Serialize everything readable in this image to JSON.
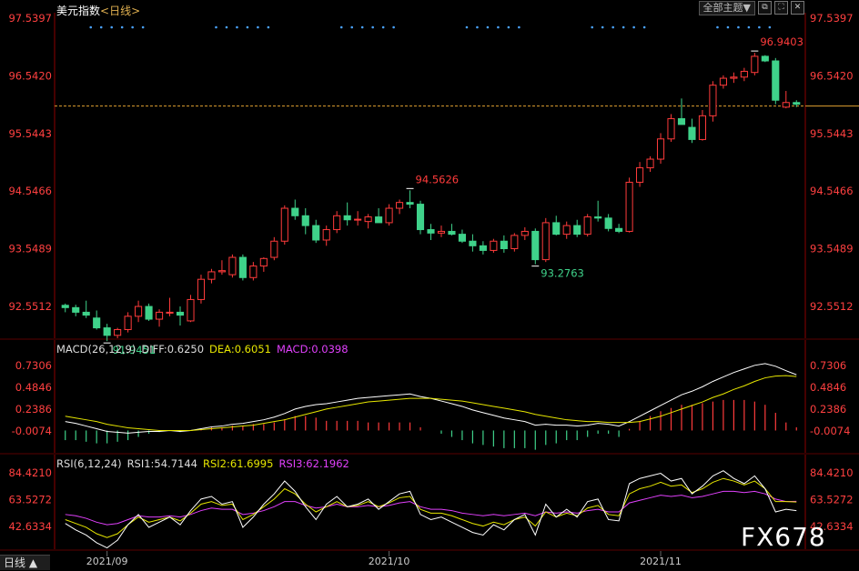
{
  "header": {
    "symbol": "美元指数",
    "period_bracketed": "<日线>",
    "dropdown_label": "全部主题▼"
  },
  "macd": {
    "label": "MACD(26,12,9)",
    "diff": "DIFF:0.6250",
    "dea": "DEA:0.6051",
    "macd": "MACD:0.0398"
  },
  "rsi": {
    "label": "RSI(6,12,24)",
    "rsi1": "RSI1:54.7144",
    "rsi2": "RSI2:61.6995",
    "rsi3": "RSI3:62.1962"
  },
  "bottom_tab": "日线 ▲",
  "watermark": "FX678",
  "colors": {
    "up": "#ff3b3b",
    "down": "#3fd28a",
    "diff": "#ffffff",
    "dea": "#e6e600",
    "rsi3": "#e040fb",
    "axis": "#8b0000"
  },
  "chart_data": [
    {
      "type": "candlestick",
      "ytick_labels": [
        "97.5397",
        "96.5420",
        "95.5443",
        "94.5466",
        "93.5489",
        "92.5512"
      ],
      "ylim": [
        92.0,
        97.5397
      ],
      "current_price_line": 96.02,
      "xtick_labels": [
        "2021/09",
        "2021/10",
        "2021/11"
      ],
      "annotations": [
        {
          "label": "91.9451",
          "index": 4,
          "kind": "low"
        },
        {
          "label": "94.5626",
          "index": 33,
          "kind": "high"
        },
        {
          "label": "93.2763",
          "index": 45,
          "kind": "low"
        },
        {
          "label": "96.9403",
          "index": 66,
          "kind": "high"
        }
      ],
      "candles": [
        [
          92.57,
          92.6,
          92.45,
          92.53
        ],
        [
          92.53,
          92.58,
          92.38,
          92.45
        ],
        [
          92.45,
          92.65,
          92.35,
          92.4
        ],
        [
          92.35,
          92.48,
          92.15,
          92.18
        ],
        [
          92.18,
          92.25,
          91.95,
          92.05
        ],
        [
          92.05,
          92.18,
          92.0,
          92.15
        ],
        [
          92.15,
          92.45,
          92.1,
          92.38
        ],
        [
          92.38,
          92.65,
          92.28,
          92.55
        ],
        [
          92.55,
          92.6,
          92.3,
          92.33
        ],
        [
          92.33,
          92.5,
          92.2,
          92.45
        ],
        [
          92.45,
          92.7,
          92.38,
          92.45
        ],
        [
          92.45,
          92.55,
          92.22,
          92.4
        ],
        [
          92.3,
          92.75,
          92.28,
          92.67
        ],
        [
          92.67,
          93.1,
          92.6,
          93.02
        ],
        [
          93.02,
          93.2,
          92.95,
          93.15
        ],
        [
          93.15,
          93.35,
          93.1,
          93.17
        ],
        [
          93.1,
          93.45,
          93.05,
          93.4
        ],
        [
          93.4,
          93.45,
          93.0,
          93.05
        ],
        [
          93.05,
          93.32,
          93.0,
          93.25
        ],
        [
          93.25,
          93.4,
          93.15,
          93.38
        ],
        [
          93.4,
          93.75,
          93.35,
          93.68
        ],
        [
          93.68,
          94.3,
          93.62,
          94.25
        ],
        [
          94.25,
          94.4,
          94.05,
          94.12
        ],
        [
          94.12,
          94.25,
          93.8,
          93.95
        ],
        [
          93.95,
          94.05,
          93.65,
          93.7
        ],
        [
          93.7,
          93.95,
          93.6,
          93.88
        ],
        [
          93.88,
          94.2,
          93.82,
          94.12
        ],
        [
          94.12,
          94.35,
          93.95,
          94.05
        ],
        [
          94.05,
          94.2,
          93.95,
          94.06
        ],
        [
          94.02,
          94.15,
          93.9,
          94.1
        ],
        [
          94.1,
          94.25,
          94.0,
          94.0
        ],
        [
          94.0,
          94.32,
          93.95,
          94.25
        ],
        [
          94.25,
          94.4,
          94.15,
          94.35
        ],
        [
          94.35,
          94.56,
          94.25,
          94.32
        ],
        [
          94.32,
          94.38,
          93.8,
          93.88
        ],
        [
          93.88,
          93.98,
          93.7,
          93.82
        ],
        [
          93.82,
          93.95,
          93.75,
          93.85
        ],
        [
          93.85,
          93.98,
          93.78,
          93.8
        ],
        [
          93.8,
          93.88,
          93.65,
          93.68
        ],
        [
          93.68,
          93.8,
          93.5,
          93.6
        ],
        [
          93.6,
          93.68,
          93.45,
          93.52
        ],
        [
          93.52,
          93.72,
          93.48,
          93.68
        ],
        [
          93.68,
          93.78,
          93.48,
          93.55
        ],
        [
          93.55,
          93.82,
          93.5,
          93.78
        ],
        [
          93.78,
          93.92,
          93.7,
          93.85
        ],
        [
          93.85,
          93.9,
          93.28,
          93.36
        ],
        [
          93.36,
          94.08,
          93.32,
          94.0
        ],
        [
          94.0,
          94.12,
          93.78,
          93.8
        ],
        [
          93.8,
          94.02,
          93.72,
          93.95
        ],
        [
          93.95,
          94.05,
          93.75,
          93.8
        ],
        [
          93.8,
          94.15,
          93.76,
          94.1
        ],
        [
          94.1,
          94.38,
          94.02,
          94.08
        ],
        [
          94.08,
          94.15,
          93.85,
          93.9
        ],
        [
          93.9,
          93.98,
          93.82,
          93.85
        ],
        [
          93.85,
          94.78,
          93.83,
          94.7
        ],
        [
          94.7,
          95.05,
          94.62,
          94.95
        ],
        [
          94.95,
          95.15,
          94.88,
          95.1
        ],
        [
          95.1,
          95.55,
          95.02,
          95.45
        ],
        [
          95.45,
          95.88,
          95.4,
          95.8
        ],
        [
          95.8,
          96.15,
          95.7,
          95.7
        ],
        [
          95.65,
          95.8,
          95.38,
          95.44
        ],
        [
          95.44,
          95.95,
          95.42,
          95.85
        ],
        [
          95.85,
          96.45,
          95.75,
          96.38
        ],
        [
          96.38,
          96.55,
          96.32,
          96.5
        ],
        [
          96.5,
          96.6,
          96.42,
          96.52
        ],
        [
          96.52,
          96.68,
          96.45,
          96.62
        ],
        [
          96.6,
          96.94,
          96.55,
          96.88
        ],
        [
          96.88,
          96.9,
          96.78,
          96.8
        ],
        [
          96.8,
          96.85,
          96.05,
          96.12
        ],
        [
          96.0,
          96.28,
          95.98,
          96.08
        ],
        [
          96.08,
          96.12,
          96.0,
          96.05
        ]
      ]
    },
    {
      "type": "macd",
      "series": [
        {
          "name": "DIFF",
          "value": 0.625
        },
        {
          "name": "DEA",
          "value": 0.6051
        },
        {
          "name": "MACD",
          "value": 0.0398
        }
      ],
      "ytick_labels": [
        "0.7306",
        "0.4846",
        "0.2386",
        "-0.0074"
      ],
      "ylim": [
        -0.25,
        0.83
      ],
      "diff": [
        0.1,
        0.08,
        0.05,
        0.02,
        -0.01,
        -0.02,
        -0.03,
        -0.02,
        -0.01,
        -0.01,
        0.0,
        -0.01,
        0.0,
        0.02,
        0.04,
        0.05,
        0.07,
        0.08,
        0.1,
        0.12,
        0.15,
        0.19,
        0.24,
        0.27,
        0.29,
        0.3,
        0.32,
        0.34,
        0.36,
        0.37,
        0.38,
        0.39,
        0.4,
        0.41,
        0.38,
        0.36,
        0.33,
        0.3,
        0.27,
        0.23,
        0.2,
        0.17,
        0.14,
        0.12,
        0.1,
        0.06,
        0.07,
        0.06,
        0.06,
        0.05,
        0.06,
        0.08,
        0.07,
        0.05,
        0.1,
        0.16,
        0.22,
        0.28,
        0.34,
        0.4,
        0.44,
        0.49,
        0.55,
        0.6,
        0.65,
        0.69,
        0.73,
        0.75,
        0.72,
        0.67,
        0.625
      ],
      "dea": [
        0.16,
        0.14,
        0.12,
        0.1,
        0.07,
        0.05,
        0.03,
        0.02,
        0.01,
        0.0,
        0.0,
        -0.0,
        0.0,
        0.01,
        0.02,
        0.03,
        0.04,
        0.05,
        0.06,
        0.08,
        0.1,
        0.12,
        0.15,
        0.18,
        0.21,
        0.24,
        0.26,
        0.28,
        0.3,
        0.32,
        0.33,
        0.34,
        0.35,
        0.36,
        0.36,
        0.36,
        0.35,
        0.34,
        0.33,
        0.31,
        0.29,
        0.27,
        0.25,
        0.23,
        0.21,
        0.18,
        0.16,
        0.14,
        0.12,
        0.11,
        0.1,
        0.1,
        0.09,
        0.09,
        0.09,
        0.1,
        0.13,
        0.16,
        0.2,
        0.24,
        0.28,
        0.32,
        0.37,
        0.41,
        0.46,
        0.5,
        0.55,
        0.59,
        0.61,
        0.615,
        0.6051
      ],
      "macd": [
        -0.12,
        -0.12,
        -0.14,
        -0.16,
        -0.16,
        -0.14,
        -0.12,
        -0.08,
        -0.04,
        -0.02,
        0.0,
        -0.02,
        0.0,
        0.02,
        0.04,
        0.04,
        0.06,
        0.06,
        0.08,
        0.08,
        0.1,
        0.14,
        0.18,
        0.18,
        0.16,
        0.12,
        0.12,
        0.12,
        0.12,
        0.1,
        0.1,
        0.1,
        0.1,
        0.1,
        0.04,
        0.0,
        -0.04,
        -0.08,
        -0.12,
        -0.16,
        -0.18,
        -0.2,
        -0.22,
        -0.22,
        -0.22,
        -0.24,
        -0.18,
        -0.16,
        -0.12,
        -0.12,
        -0.08,
        -0.04,
        -0.04,
        -0.08,
        0.02,
        0.12,
        0.18,
        0.24,
        0.28,
        0.32,
        0.32,
        0.34,
        0.36,
        0.38,
        0.38,
        0.38,
        0.36,
        0.32,
        0.22,
        0.1,
        0.0398
      ]
    },
    {
      "type": "rsi",
      "series": [
        {
          "name": "RSI1",
          "value": 54.7144
        },
        {
          "name": "RSI2",
          "value": 61.6995
        },
        {
          "name": "RSI3",
          "value": 62.1962
        }
      ],
      "ytick_labels": [
        "84.4210",
        "63.5272",
        "42.6334"
      ],
      "ylim": [
        25,
        95
      ],
      "rsi1": [
        45,
        40,
        36,
        30,
        26,
        32,
        44,
        52,
        42,
        46,
        50,
        44,
        55,
        64,
        66,
        60,
        62,
        42,
        50,
        60,
        68,
        78,
        70,
        58,
        48,
        60,
        66,
        58,
        60,
        64,
        56,
        62,
        68,
        70,
        52,
        48,
        50,
        46,
        42,
        38,
        36,
        44,
        40,
        48,
        52,
        36,
        60,
        50,
        56,
        50,
        62,
        64,
        48,
        47,
        76,
        80,
        82,
        84,
        78,
        80,
        68,
        74,
        82,
        86,
        80,
        76,
        82,
        72,
        54,
        56,
        55
      ],
      "rsi2": [
        48,
        45,
        42,
        37,
        34,
        37,
        44,
        50,
        46,
        48,
        50,
        47,
        53,
        60,
        62,
        59,
        60,
        48,
        52,
        58,
        64,
        72,
        68,
        60,
        54,
        58,
        62,
        58,
        59,
        62,
        58,
        61,
        65,
        66,
        56,
        53,
        53,
        51,
        48,
        45,
        43,
        46,
        44,
        48,
        50,
        43,
        54,
        50,
        53,
        51,
        57,
        59,
        52,
        51,
        68,
        72,
        74,
        77,
        74,
        75,
        69,
        72,
        77,
        80,
        78,
        75,
        78,
        72,
        62,
        62,
        61.7
      ],
      "rsi3": [
        52,
        51,
        49,
        46,
        44,
        45,
        48,
        51,
        50,
        50,
        51,
        50,
        52,
        55,
        57,
        56,
        56,
        52,
        53,
        55,
        58,
        62,
        62,
        59,
        57,
        58,
        60,
        58,
        58,
        59,
        58,
        59,
        61,
        62,
        58,
        56,
        56,
        55,
        53,
        52,
        51,
        52,
        51,
        52,
        53,
        51,
        54,
        53,
        54,
        53,
        55,
        56,
        54,
        54,
        61,
        63,
        65,
        67,
        66,
        67,
        65,
        66,
        68,
        70,
        70,
        69,
        70,
        68,
        64,
        62,
        62.2
      ]
    }
  ]
}
